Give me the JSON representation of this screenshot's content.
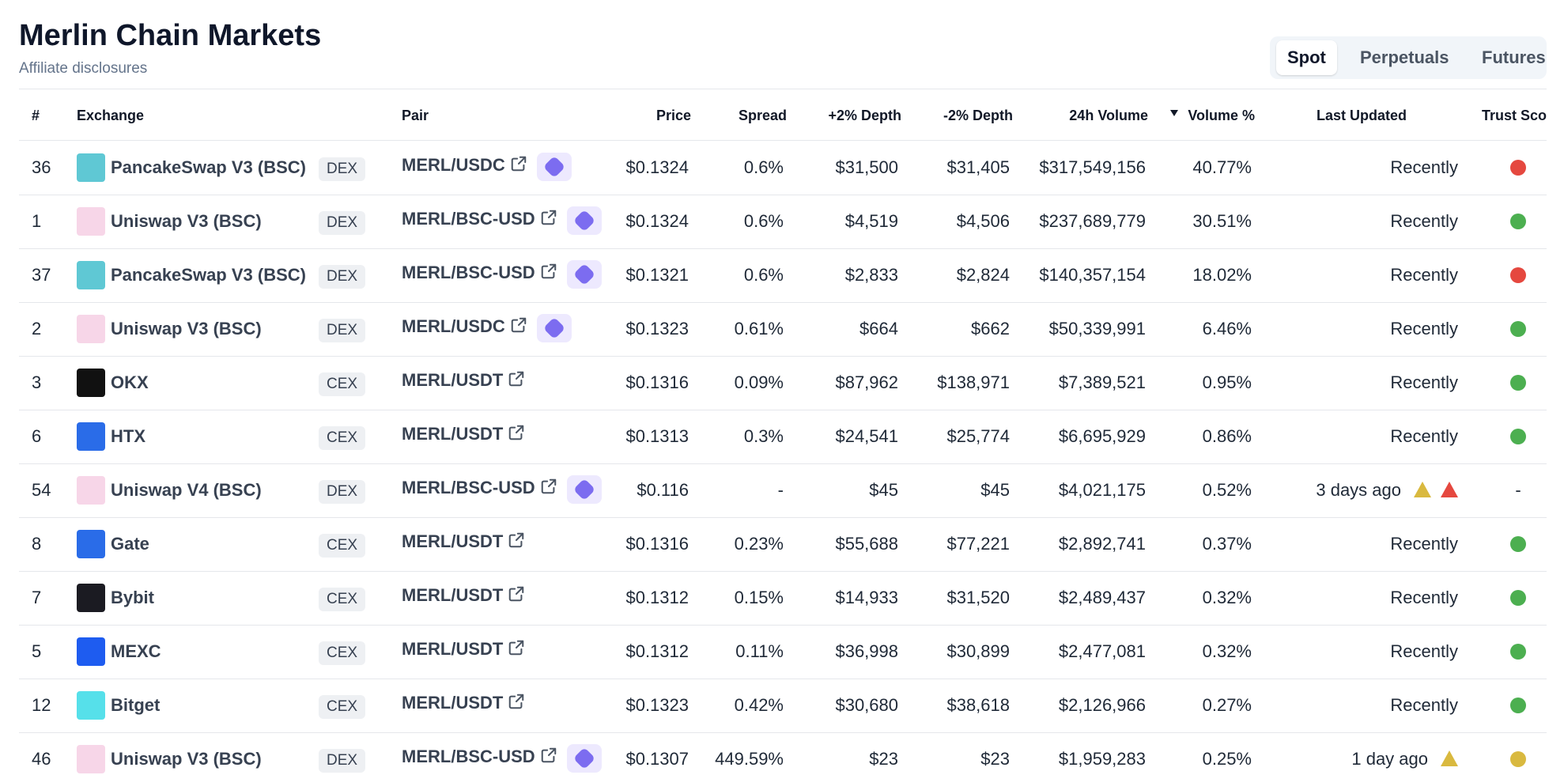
{
  "header": {
    "title": "Merlin Chain Markets",
    "subtitle": "Affiliate disclosures"
  },
  "tabs": {
    "items": [
      "Spot",
      "Perpetuals",
      "Futures"
    ],
    "active": 0
  },
  "table": {
    "columns": [
      "#",
      "Exchange",
      "Pair",
      "Price",
      "Spread",
      "+2% Depth",
      "-2% Depth",
      "24h Volume",
      "Volume %",
      "Last Updated",
      "Trust Score"
    ],
    "sort_column_index": 8,
    "rows": [
      {
        "rank": "36",
        "exchange": "PancakeSwap V3 (BSC)",
        "logo": "#5fc8d4",
        "type": "DEX",
        "pair": "MERL/USDC",
        "badge": true,
        "price": "$0.1324",
        "spread": "0.6%",
        "depth_plus": "$31,500",
        "depth_minus": "$31,405",
        "volume": "$317,549,156",
        "volume_pct": "40.77%",
        "updated": "Recently",
        "flags": [],
        "trust": "red"
      },
      {
        "rank": "1",
        "exchange": "Uniswap V3 (BSC)",
        "logo": "#f7d6e8",
        "type": "DEX",
        "pair": "MERL/BSC-USD",
        "badge": true,
        "price": "$0.1324",
        "spread": "0.6%",
        "depth_plus": "$4,519",
        "depth_minus": "$4,506",
        "volume": "$237,689,779",
        "volume_pct": "30.51%",
        "updated": "Recently",
        "flags": [],
        "trust": "green"
      },
      {
        "rank": "37",
        "exchange": "PancakeSwap V3 (BSC)",
        "logo": "#5fc8d4",
        "type": "DEX",
        "pair": "MERL/BSC-USD",
        "badge": true,
        "price": "$0.1321",
        "spread": "0.6%",
        "depth_plus": "$2,833",
        "depth_minus": "$2,824",
        "volume": "$140,357,154",
        "volume_pct": "18.02%",
        "updated": "Recently",
        "flags": [],
        "trust": "red"
      },
      {
        "rank": "2",
        "exchange": "Uniswap V3 (BSC)",
        "logo": "#f7d6e8",
        "type": "DEX",
        "pair": "MERL/USDC",
        "badge": true,
        "price": "$0.1323",
        "spread": "0.61%",
        "depth_plus": "$664",
        "depth_minus": "$662",
        "volume": "$50,339,991",
        "volume_pct": "6.46%",
        "updated": "Recently",
        "flags": [],
        "trust": "green"
      },
      {
        "rank": "3",
        "exchange": "OKX",
        "logo": "#111111",
        "type": "CEX",
        "pair": "MERL/USDT",
        "badge": false,
        "price": "$0.1316",
        "spread": "0.09%",
        "depth_plus": "$87,962",
        "depth_minus": "$138,971",
        "volume": "$7,389,521",
        "volume_pct": "0.95%",
        "updated": "Recently",
        "flags": [],
        "trust": "green"
      },
      {
        "rank": "6",
        "exchange": "HTX",
        "logo": "#2a6ce8",
        "type": "CEX",
        "pair": "MERL/USDT",
        "badge": false,
        "price": "$0.1313",
        "spread": "0.3%",
        "depth_plus": "$24,541",
        "depth_minus": "$25,774",
        "volume": "$6,695,929",
        "volume_pct": "0.86%",
        "updated": "Recently",
        "flags": [],
        "trust": "green"
      },
      {
        "rank": "54",
        "exchange": "Uniswap V4 (BSC)",
        "logo": "#f7d6e8",
        "type": "DEX",
        "pair": "MERL/BSC-USD",
        "badge": true,
        "price": "$0.116",
        "spread": "-",
        "depth_plus": "$45",
        "depth_minus": "$45",
        "volume": "$4,021,175",
        "volume_pct": "0.52%",
        "updated": "3 days ago",
        "flags": [
          "warning",
          "alert"
        ],
        "trust": "-"
      },
      {
        "rank": "8",
        "exchange": "Gate",
        "logo": "#2a6ce8",
        "type": "CEX",
        "pair": "MERL/USDT",
        "badge": false,
        "price": "$0.1316",
        "spread": "0.23%",
        "depth_plus": "$55,688",
        "depth_minus": "$77,221",
        "volume": "$2,892,741",
        "volume_pct": "0.37%",
        "updated": "Recently",
        "flags": [],
        "trust": "green"
      },
      {
        "rank": "7",
        "exchange": "Bybit",
        "logo": "#1b1b22",
        "type": "CEX",
        "pair": "MERL/USDT",
        "badge": false,
        "price": "$0.1312",
        "spread": "0.15%",
        "depth_plus": "$14,933",
        "depth_minus": "$31,520",
        "volume": "$2,489,437",
        "volume_pct": "0.32%",
        "updated": "Recently",
        "flags": [],
        "trust": "green"
      },
      {
        "rank": "5",
        "exchange": "MEXC",
        "logo": "#1e5cf0",
        "type": "CEX",
        "pair": "MERL/USDT",
        "badge": false,
        "price": "$0.1312",
        "spread": "0.11%",
        "depth_plus": "$36,998",
        "depth_minus": "$30,899",
        "volume": "$2,477,081",
        "volume_pct": "0.32%",
        "updated": "Recently",
        "flags": [],
        "trust": "green"
      },
      {
        "rank": "12",
        "exchange": "Bitget",
        "logo": "#56e0ea",
        "type": "CEX",
        "pair": "MERL/USDT",
        "badge": false,
        "price": "$0.1323",
        "spread": "0.42%",
        "depth_plus": "$30,680",
        "depth_minus": "$38,618",
        "volume": "$2,126,966",
        "volume_pct": "0.27%",
        "updated": "Recently",
        "flags": [],
        "trust": "green"
      },
      {
        "rank": "46",
        "exchange": "Uniswap V3 (BSC)",
        "logo": "#f7d6e8",
        "type": "DEX",
        "pair": "MERL/BSC-USD",
        "badge": true,
        "price": "$0.1307",
        "spread": "449.59%",
        "depth_plus": "$23",
        "depth_minus": "$23",
        "volume": "$1,959,283",
        "volume_pct": "0.25%",
        "updated": "1 day ago",
        "flags": [
          "warning"
        ],
        "trust": "yellow"
      }
    ]
  }
}
